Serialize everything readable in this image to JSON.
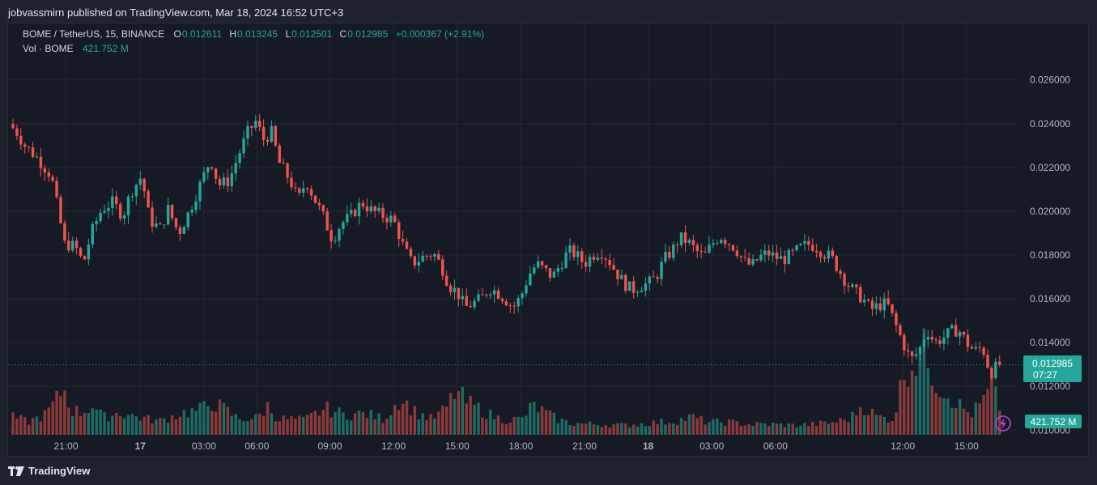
{
  "header": {
    "published": "jobvassmirn published on TradingView.com, Mar 18, 2024 16:52 UTC+3"
  },
  "legend": {
    "symbol": "BOME / TetherUS, 15, BINANCE",
    "o_label": "O",
    "o": "0.012611",
    "h_label": "H",
    "h": "0.013245",
    "l_label": "L",
    "l": "0.012501",
    "c_label": "C",
    "c": "0.012985",
    "change": "+0.000367 (+2.91%)",
    "vol_label": "Vol · BOME",
    "vol": "421.752 M"
  },
  "price_badge": {
    "price": "0.012985",
    "countdown": "07:27"
  },
  "volume_badge": "421.752 M",
  "footer": {
    "brand": "TradingView"
  },
  "colors": {
    "up": "#26a69a",
    "down": "#ef5350",
    "background": "#161a25",
    "grid": "#232733"
  },
  "icons": {
    "replay": "lightning-icon",
    "logo": "tradingview-logo-icon"
  },
  "chart_data": {
    "type": "candlestick",
    "symbol": "BOME / TetherUS",
    "interval": "15",
    "exchange": "BINANCE",
    "y_ticks": [
      "0.026000",
      "0.024000",
      "0.022000",
      "0.020000",
      "0.018000",
      "0.016000",
      "0.014000",
      "0.012000",
      "0.010000"
    ],
    "ylim": [
      0.0099,
      0.0271
    ],
    "x_ticks": [
      "21:00",
      "17",
      "03:00",
      "06:00",
      "09:00",
      "12:00",
      "15:00",
      "18:00",
      "21:00",
      "18",
      "03:00",
      "06:00",
      "12:00",
      "15:00"
    ],
    "bold_x_ticks": [
      "17",
      "18"
    ],
    "x_tick_index": [
      40,
      96,
      144,
      184,
      239,
      287,
      335,
      383,
      431,
      479,
      527,
      575,
      671,
      719
    ],
    "start_index": 0,
    "end_index": 746,
    "last_price": 0.012985,
    "anchors": [
      [
        0,
        0.024
      ],
      [
        6,
        0.0236
      ],
      [
        12,
        0.023
      ],
      [
        22,
        0.0224
      ],
      [
        32,
        0.0216
      ],
      [
        42,
        0.0185
      ],
      [
        50,
        0.0184
      ],
      [
        56,
        0.0176
      ],
      [
        62,
        0.019
      ],
      [
        70,
        0.0201
      ],
      [
        78,
        0.0204
      ],
      [
        86,
        0.0198
      ],
      [
        92,
        0.0209
      ],
      [
        100,
        0.0216
      ],
      [
        106,
        0.0196
      ],
      [
        114,
        0.0192
      ],
      [
        120,
        0.0201
      ],
      [
        128,
        0.019
      ],
      [
        136,
        0.02
      ],
      [
        144,
        0.0212
      ],
      [
        152,
        0.0224
      ],
      [
        158,
        0.0212
      ],
      [
        166,
        0.0214
      ],
      [
        172,
        0.0224
      ],
      [
        180,
        0.0236
      ],
      [
        186,
        0.0241
      ],
      [
        192,
        0.0233
      ],
      [
        198,
        0.0236
      ],
      [
        204,
        0.0222
      ],
      [
        212,
        0.0214
      ],
      [
        218,
        0.0205
      ],
      [
        224,
        0.0214
      ],
      [
        230,
        0.0206
      ],
      [
        236,
        0.0199
      ],
      [
        244,
        0.0187
      ],
      [
        250,
        0.0194
      ],
      [
        258,
        0.0198
      ],
      [
        266,
        0.0204
      ],
      [
        274,
        0.02
      ],
      [
        282,
        0.0198
      ],
      [
        290,
        0.0196
      ],
      [
        298,
        0.0183
      ],
      [
        304,
        0.0176
      ],
      [
        312,
        0.0179
      ],
      [
        320,
        0.0181
      ],
      [
        326,
        0.0175
      ],
      [
        332,
        0.0166
      ],
      [
        338,
        0.0163
      ],
      [
        344,
        0.0156
      ],
      [
        350,
        0.0158
      ],
      [
        356,
        0.016
      ],
      [
        362,
        0.0165
      ],
      [
        368,
        0.0163
      ],
      [
        374,
        0.016
      ],
      [
        380,
        0.0156
      ],
      [
        386,
        0.0161
      ],
      [
        392,
        0.0171
      ],
      [
        398,
        0.0176
      ],
      [
        404,
        0.0173
      ],
      [
        410,
        0.017
      ],
      [
        416,
        0.0176
      ],
      [
        422,
        0.0182
      ],
      [
        428,
        0.018
      ],
      [
        434,
        0.0176
      ],
      [
        440,
        0.018
      ],
      [
        446,
        0.0182
      ],
      [
        452,
        0.0178
      ],
      [
        458,
        0.0172
      ],
      [
        464,
        0.0167
      ],
      [
        470,
        0.0164
      ],
      [
        476,
        0.0166
      ],
      [
        482,
        0.0167
      ],
      [
        488,
        0.017
      ],
      [
        494,
        0.0178
      ],
      [
        500,
        0.0182
      ],
      [
        506,
        0.0188
      ],
      [
        512,
        0.0186
      ],
      [
        518,
        0.0182
      ],
      [
        524,
        0.0179
      ],
      [
        530,
        0.0185
      ],
      [
        536,
        0.0189
      ],
      [
        542,
        0.0186
      ],
      [
        548,
        0.0183
      ],
      [
        554,
        0.0177
      ],
      [
        560,
        0.0175
      ],
      [
        566,
        0.0179
      ],
      [
        572,
        0.0181
      ],
      [
        578,
        0.0179
      ],
      [
        584,
        0.0178
      ],
      [
        590,
        0.018
      ],
      [
        596,
        0.0183
      ],
      [
        602,
        0.0185
      ],
      [
        608,
        0.0184
      ],
      [
        614,
        0.0181
      ],
      [
        620,
        0.0179
      ],
      [
        626,
        0.0173
      ],
      [
        632,
        0.0167
      ],
      [
        638,
        0.0163
      ],
      [
        644,
        0.016
      ],
      [
        650,
        0.0155
      ],
      [
        656,
        0.0157
      ],
      [
        662,
        0.0158
      ],
      [
        668,
        0.0149
      ],
      [
        674,
        0.014
      ],
      [
        680,
        0.0132
      ],
      [
        686,
        0.0136
      ],
      [
        692,
        0.0146
      ],
      [
        698,
        0.014
      ],
      [
        704,
        0.0142
      ],
      [
        710,
        0.0145
      ],
      [
        716,
        0.0146
      ],
      [
        722,
        0.014
      ],
      [
        728,
        0.0136
      ],
      [
        734,
        0.0138
      ],
      [
        740,
        0.0126
      ],
      [
        746,
        0.012985
      ]
    ],
    "volume_scale_M": [
      0,
      2000
    ],
    "volume_anchors_M": [
      [
        0,
        330
      ],
      [
        12,
        250
      ],
      [
        24,
        380
      ],
      [
        32,
        620
      ],
      [
        38,
        900
      ],
      [
        44,
        480
      ],
      [
        52,
        420
      ],
      [
        60,
        560
      ],
      [
        68,
        330
      ],
      [
        80,
        420
      ],
      [
        96,
        330
      ],
      [
        110,
        260
      ],
      [
        128,
        420
      ],
      [
        140,
        460
      ],
      [
        150,
        620
      ],
      [
        160,
        480
      ],
      [
        170,
        300
      ],
      [
        184,
        320
      ],
      [
        192,
        540
      ],
      [
        200,
        300
      ],
      [
        210,
        300
      ],
      [
        220,
        280
      ],
      [
        236,
        500
      ],
      [
        250,
        380
      ],
      [
        266,
        400
      ],
      [
        280,
        300
      ],
      [
        292,
        700
      ],
      [
        304,
        420
      ],
      [
        316,
        300
      ],
      [
        326,
        480
      ],
      [
        334,
        840
      ],
      [
        342,
        620
      ],
      [
        350,
        520
      ],
      [
        358,
        400
      ],
      [
        370,
        280
      ],
      [
        384,
        300
      ],
      [
        392,
        560
      ],
      [
        400,
        440
      ],
      [
        410,
        300
      ],
      [
        420,
        220
      ],
      [
        440,
        200
      ],
      [
        460,
        180
      ],
      [
        470,
        200
      ],
      [
        488,
        240
      ],
      [
        500,
        260
      ],
      [
        512,
        340
      ],
      [
        524,
        240
      ],
      [
        540,
        240
      ],
      [
        556,
        200
      ],
      [
        572,
        200
      ],
      [
        588,
        180
      ],
      [
        604,
        200
      ],
      [
        620,
        240
      ],
      [
        632,
        320
      ],
      [
        640,
        560
      ],
      [
        652,
        340
      ],
      [
        664,
        300
      ],
      [
        672,
        1200
      ],
      [
        680,
        1400
      ],
      [
        688,
        1600
      ],
      [
        696,
        1000
      ],
      [
        704,
        800
      ],
      [
        712,
        600
      ],
      [
        722,
        380
      ],
      [
        732,
        650
      ],
      [
        738,
        900
      ],
      [
        746,
        421.752
      ]
    ]
  }
}
